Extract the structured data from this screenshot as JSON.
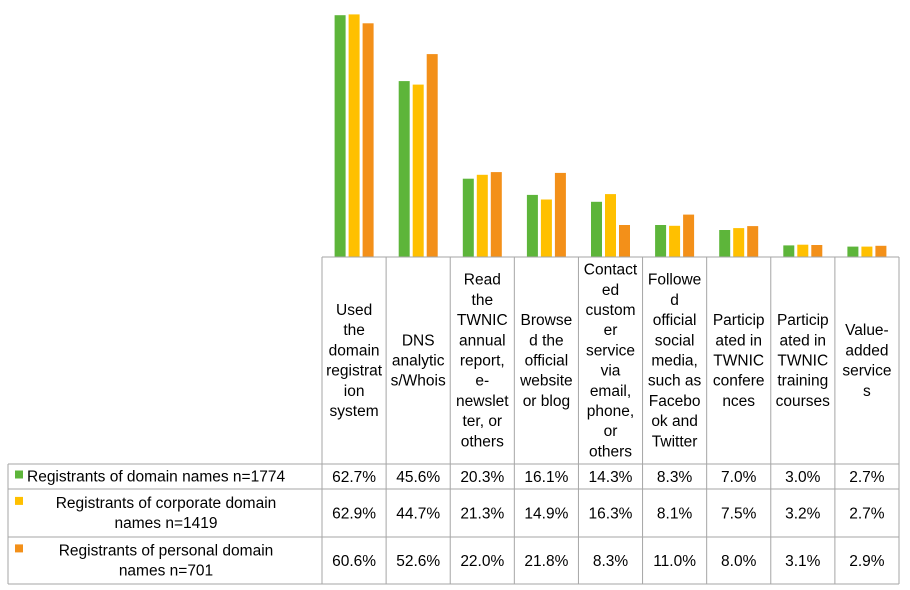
{
  "chart_data": {
    "type": "bar",
    "categories": [
      "Used the domain registration system",
      "DNS analytics/Whois",
      "Read the TWNIC annual report, e-newsletter, or others",
      "Browsed the official website or blog",
      "Contacted customer service via email, phone, or others",
      "Followed official social media, such as Facebook and Twitter",
      "Participated in TWNIC conferences",
      "Participated in TWNIC training courses",
      "Value-added services"
    ],
    "category_label_lines": [
      [
        "Used",
        "the",
        "domain",
        "registrat",
        "ion",
        "system"
      ],
      [
        "DNS",
        "analytic",
        "s/Whois"
      ],
      [
        "Read",
        "the",
        "TWNIC",
        "annual",
        "report,",
        "e-",
        "newslet",
        "ter, or",
        "others"
      ],
      [
        "Browse",
        "d the",
        "official",
        "website",
        "or blog"
      ],
      [
        "Contact",
        "ed",
        "custom",
        "er",
        "service",
        "via",
        "email,",
        "phone,",
        "or",
        "others"
      ],
      [
        "Followe",
        "d",
        "official",
        "social",
        "media,",
        "such as",
        "Facebo",
        "ok and",
        "Twitter"
      ],
      [
        "Particip",
        "ated in",
        "TWNIC",
        "confere",
        "nces"
      ],
      [
        "Particip",
        "ated in",
        "TWNIC",
        "training",
        "courses"
      ],
      [
        "Value-",
        "added",
        "service",
        "s"
      ]
    ],
    "series": [
      {
        "name": "Registrants of domain names n=1774",
        "name_lines": [
          "Registrants of domain names n=1774"
        ],
        "color": "#5db53a",
        "values": [
          62.7,
          45.6,
          20.3,
          16.1,
          14.3,
          8.3,
          7.0,
          3.0,
          2.7
        ],
        "labels": [
          "62.7%",
          "45.6%",
          "20.3%",
          "16.1%",
          "14.3%",
          "8.3%",
          "7.0%",
          "3.0%",
          "2.7%"
        ]
      },
      {
        "name": "Registrants of corporate domain names n=1419",
        "name_lines": [
          "Registrants of corporate domain",
          "names n=1419"
        ],
        "color": "#ffc000",
        "values": [
          62.9,
          44.7,
          21.3,
          14.9,
          16.3,
          8.1,
          7.5,
          3.2,
          2.7
        ],
        "labels": [
          "62.9%",
          "44.7%",
          "21.3%",
          "14.9%",
          "16.3%",
          "8.1%",
          "7.5%",
          "3.2%",
          "2.7%"
        ]
      },
      {
        "name": "Registrants of personal domain names n=701",
        "name_lines": [
          "Registrants of personal domain",
          "names n=701"
        ],
        "color": "#f39019",
        "values": [
          60.6,
          52.6,
          22.0,
          21.8,
          8.3,
          11.0,
          8.0,
          3.1,
          2.9
        ],
        "labels": [
          "60.6%",
          "52.6%",
          "22.0%",
          "21.8%",
          "8.3%",
          "11.0%",
          "8.0%",
          "3.1%",
          "2.9%"
        ]
      }
    ],
    "ylim": [
      0,
      63
    ],
    "unit": "%",
    "legend": "table-left",
    "grid": false
  }
}
